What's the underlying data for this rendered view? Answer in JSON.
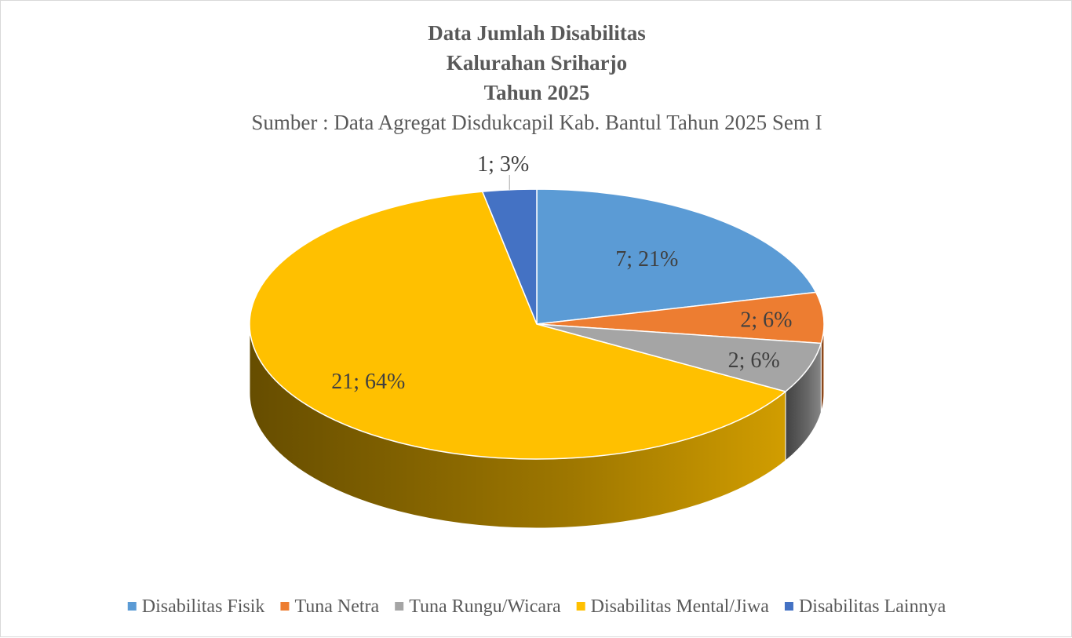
{
  "chart_data": {
    "type": "pie",
    "title": [
      "Data Jumlah Disabilitas",
      "Kalurahan Sriharjo",
      "Tahun 2025"
    ],
    "subtitle": "Sumber : Data Agregat Disdukcapil Kab. Bantul Tahun 2025 Sem I",
    "style": "3d",
    "legend_position": "bottom",
    "slices": [
      {
        "name": "Disabilitas Fisik",
        "value": 7,
        "percent": 21,
        "label": "7; 21%",
        "color": "#5b9bd5"
      },
      {
        "name": "Tuna Netra",
        "value": 2,
        "percent": 6,
        "label": "2; 6%",
        "color": "#ed7d31"
      },
      {
        "name": "Tuna Rungu/Wicara",
        "value": 2,
        "percent": 6,
        "label": "2; 6%",
        "color": "#a5a5a5"
      },
      {
        "name": "Disabilitas Mental/Jiwa",
        "value": 21,
        "percent": 64,
        "label": "21; 64%",
        "color": "#ffc000"
      },
      {
        "name": "Disabilitas Lainnya",
        "value": 1,
        "percent": 3,
        "label": "1; 3%",
        "color": "#4472c4"
      }
    ]
  }
}
